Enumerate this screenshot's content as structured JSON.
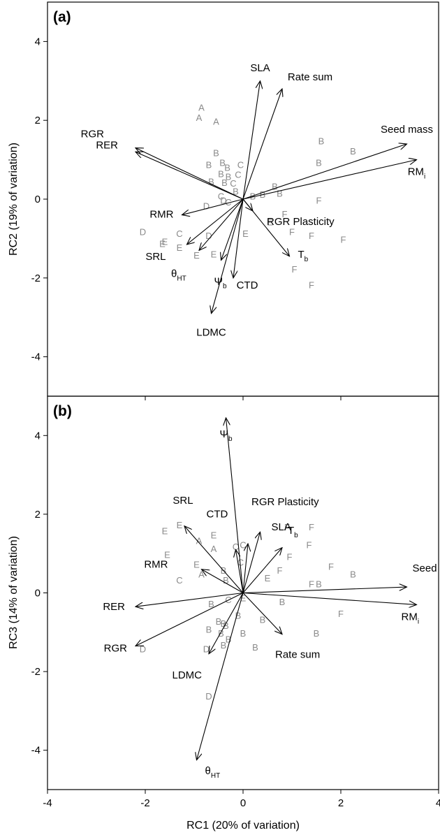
{
  "chart_data": [
    {
      "type": "scatter",
      "panel_label": "(a)",
      "xlabel": "",
      "ylabel": "RC2 (19% of variation)",
      "xlim": [
        -4,
        4
      ],
      "ylim": [
        -5,
        5
      ],
      "yticks": [
        -4,
        -2,
        0,
        2,
        4
      ],
      "xticks": [
        -4,
        -2,
        0,
        2,
        4
      ],
      "show_xticklabels": false,
      "grid": false,
      "vectors": [
        {
          "id": "sla",
          "label": "SLA",
          "end": [
            0.35,
            3.0
          ]
        },
        {
          "id": "ratesum",
          "label": "Rate sum",
          "end": [
            0.8,
            2.8
          ]
        },
        {
          "id": "rgr",
          "label": "RGR",
          "end": [
            -2.2,
            1.3
          ]
        },
        {
          "id": "rer",
          "label": "RER",
          "end": [
            -2.2,
            1.2
          ]
        },
        {
          "id": "seedmass",
          "label": "Seed mass",
          "end": [
            3.35,
            1.4
          ]
        },
        {
          "id": "rmi",
          "label": "RM",
          "sub": "i",
          "end": [
            3.55,
            1.0
          ]
        },
        {
          "id": "rmr",
          "label": "RMR",
          "end": [
            -1.25,
            -0.4
          ]
        },
        {
          "id": "rgrplast",
          "label": "RGR Plasticity",
          "end": [
            0.2,
            -0.3
          ]
        },
        {
          "id": "srl",
          "label": "SRL",
          "end": [
            -1.15,
            -1.15
          ]
        },
        {
          "id": "theta",
          "label": "θ",
          "sub": "HT",
          "end": [
            -0.9,
            -1.3
          ]
        },
        {
          "id": "psi",
          "label": "Ψ",
          "sub": "b",
          "end": [
            -0.45,
            -1.55
          ]
        },
        {
          "id": "ctd",
          "label": "CTD",
          "end": [
            -0.2,
            -2.0
          ]
        },
        {
          "id": "ldmc",
          "label": "LDMC",
          "end": [
            -0.65,
            -2.9
          ]
        },
        {
          "id": "tb",
          "label": "T",
          "sub": "b",
          "end": [
            0.95,
            -1.45
          ]
        }
      ],
      "points": [
        {
          "label": "A",
          "x": -0.85,
          "y": 2.3
        },
        {
          "label": "A",
          "x": -0.9,
          "y": 2.05
        },
        {
          "label": "A",
          "x": -0.55,
          "y": 1.95
        },
        {
          "label": "B",
          "x": -0.55,
          "y": 1.15
        },
        {
          "label": "B",
          "x": -0.7,
          "y": 0.85
        },
        {
          "label": "B",
          "x": -0.42,
          "y": 0.9
        },
        {
          "label": "B",
          "x": -0.32,
          "y": 0.78
        },
        {
          "label": "B",
          "x": -0.45,
          "y": 0.62
        },
        {
          "label": "B",
          "x": -0.3,
          "y": 0.55
        },
        {
          "label": "B",
          "x": -0.65,
          "y": 0.42
        },
        {
          "label": "B",
          "x": -0.38,
          "y": 0.4
        },
        {
          "label": "B",
          "x": -0.15,
          "y": 0.18
        },
        {
          "label": "B",
          "x": 0.2,
          "y": 0.05
        },
        {
          "label": "B",
          "x": 0.4,
          "y": 0.1
        },
        {
          "label": "B",
          "x": 0.65,
          "y": 0.3
        },
        {
          "label": "B",
          "x": 0.75,
          "y": 0.12
        },
        {
          "label": "B",
          "x": 1.6,
          "y": 1.45
        },
        {
          "label": "B",
          "x": 1.55,
          "y": 0.9
        },
        {
          "label": "B",
          "x": 2.25,
          "y": 1.2
        },
        {
          "label": "C",
          "x": -0.05,
          "y": 0.85
        },
        {
          "label": "C",
          "x": -0.1,
          "y": 0.6
        },
        {
          "label": "C",
          "x": -0.2,
          "y": 0.38
        },
        {
          "label": "C",
          "x": -0.45,
          "y": 0.05
        },
        {
          "label": "C",
          "x": -0.3,
          "y": -0.1
        },
        {
          "label": "C",
          "x": -1.3,
          "y": -0.9
        },
        {
          "label": "D",
          "x": -2.05,
          "y": -0.85
        },
        {
          "label": "D",
          "x": -0.75,
          "y": -0.2
        },
        {
          "label": "D",
          "x": -0.4,
          "y": -0.05
        },
        {
          "label": "D",
          "x": -0.7,
          "y": -0.95
        },
        {
          "label": "E",
          "x": -1.6,
          "y": -1.1
        },
        {
          "label": "E",
          "x": -1.65,
          "y": -1.15
        },
        {
          "label": "E",
          "x": -1.3,
          "y": -1.25
        },
        {
          "label": "E",
          "x": -0.95,
          "y": -1.45
        },
        {
          "label": "E",
          "x": -0.6,
          "y": -1.42
        },
        {
          "label": "E",
          "x": 0.05,
          "y": -0.9
        },
        {
          "label": "E",
          "x": 0.55,
          "y": -0.6
        },
        {
          "label": "F",
          "x": 0.85,
          "y": -0.4
        },
        {
          "label": "F",
          "x": 1.0,
          "y": -0.85
        },
        {
          "label": "F",
          "x": 1.55,
          "y": -0.05
        },
        {
          "label": "F",
          "x": 2.05,
          "y": -1.05
        },
        {
          "label": "F",
          "x": 1.4,
          "y": -0.95
        },
        {
          "label": "F",
          "x": 1.05,
          "y": -1.8
        },
        {
          "label": "F",
          "x": 1.4,
          "y": -2.2
        }
      ]
    },
    {
      "type": "scatter",
      "panel_label": "(b)",
      "xlabel": "RC1 (20% of variation)",
      "ylabel": "RC3 (14% of variation)",
      "xlim": [
        -4,
        4
      ],
      "ylim": [
        -5,
        5
      ],
      "yticks": [
        -4,
        -2,
        0,
        2,
        4
      ],
      "xticks": [
        -4,
        -2,
        0,
        2,
        4
      ],
      "show_xticklabels": true,
      "grid": false,
      "vectors": [
        {
          "id": "psi",
          "label": "Ψ",
          "sub": "b",
          "end": [
            -0.35,
            4.45
          ]
        },
        {
          "id": "rgrplast",
          "label": "RGR Plasticity",
          "end": [
            0.1,
            1.25
          ]
        },
        {
          "id": "srl",
          "label": "SRL",
          "end": [
            -1.2,
            1.7
          ]
        },
        {
          "id": "ctd",
          "label": "CTD",
          "end": [
            -0.15,
            1.1
          ]
        },
        {
          "id": "sla",
          "label": "SLA",
          "end": [
            0.35,
            1.55
          ]
        },
        {
          "id": "tb",
          "label": "T",
          "sub": "b",
          "end": [
            0.8,
            1.15
          ]
        },
        {
          "id": "rmr",
          "label": "RMR",
          "end": [
            -0.85,
            0.6
          ]
        },
        {
          "id": "seedmass",
          "label": "Seed mass",
          "end": [
            3.35,
            0.15
          ]
        },
        {
          "id": "rmi",
          "label": "RM",
          "sub": "i",
          "end": [
            3.55,
            -0.3
          ]
        },
        {
          "id": "rer",
          "label": "RER",
          "end": [
            -2.2,
            -0.35
          ]
        },
        {
          "id": "rgr",
          "label": "RGR",
          "end": [
            -2.2,
            -1.35
          ]
        },
        {
          "id": "ratesum",
          "label": "Rate sum",
          "end": [
            0.8,
            -1.05
          ]
        },
        {
          "id": "ldmc",
          "label": "LDMC",
          "end": [
            -0.7,
            -1.55
          ]
        },
        {
          "id": "theta",
          "label": "θ",
          "sub": "HT",
          "end": [
            -0.95,
            -4.25
          ]
        }
      ],
      "points": [
        {
          "label": "E",
          "x": -1.3,
          "y": 1.7
        },
        {
          "label": "E",
          "x": -1.6,
          "y": 1.55
        },
        {
          "label": "E",
          "x": -0.6,
          "y": 1.45
        },
        {
          "label": "E",
          "x": -1.55,
          "y": 0.95
        },
        {
          "label": "E",
          "x": -0.95,
          "y": 0.7
        },
        {
          "label": "E",
          "x": 0.0,
          "y": -0.15
        },
        {
          "label": "E",
          "x": 0.5,
          "y": 0.35
        },
        {
          "label": "A",
          "x": -0.9,
          "y": 1.3
        },
        {
          "label": "A",
          "x": -0.6,
          "y": 1.1
        },
        {
          "label": "A",
          "x": -0.85,
          "y": 0.45
        },
        {
          "label": "C",
          "x": -0.15,
          "y": 1.15
        },
        {
          "label": "C",
          "x": 0.0,
          "y": 1.2
        },
        {
          "label": "C",
          "x": -0.05,
          "y": 0.75
        },
        {
          "label": "C",
          "x": -1.3,
          "y": 0.3
        },
        {
          "label": "C",
          "x": -0.3,
          "y": -0.2
        },
        {
          "label": "B",
          "x": -0.4,
          "y": 0.55
        },
        {
          "label": "B",
          "x": -0.35,
          "y": 0.3
        },
        {
          "label": "B",
          "x": -0.65,
          "y": -0.3
        },
        {
          "label": "B",
          "x": -0.5,
          "y": -0.75
        },
        {
          "label": "B",
          "x": -0.4,
          "y": -0.8
        },
        {
          "label": "B",
          "x": -0.35,
          "y": -0.85
        },
        {
          "label": "B",
          "x": -0.7,
          "y": -0.95
        },
        {
          "label": "B",
          "x": -0.45,
          "y": -1.05
        },
        {
          "label": "B",
          "x": -0.3,
          "y": -1.2
        },
        {
          "label": "B",
          "x": -0.4,
          "y": -1.35
        },
        {
          "label": "B",
          "x": 0.0,
          "y": -1.05
        },
        {
          "label": "B",
          "x": -0.1,
          "y": -0.6
        },
        {
          "label": "B",
          "x": 0.25,
          "y": -1.4
        },
        {
          "label": "B",
          "x": 0.4,
          "y": -0.7
        },
        {
          "label": "B",
          "x": 0.8,
          "y": -0.25
        },
        {
          "label": "B",
          "x": 1.55,
          "y": 0.2
        },
        {
          "label": "B",
          "x": 1.5,
          "y": -1.05
        },
        {
          "label": "B",
          "x": 2.25,
          "y": 0.45
        },
        {
          "label": "D",
          "x": -2.05,
          "y": -1.45
        },
        {
          "label": "D",
          "x": -0.75,
          "y": -1.45
        },
        {
          "label": "D",
          "x": -0.7,
          "y": -2.65
        },
        {
          "label": "F",
          "x": 0.9,
          "y": 1.65
        },
        {
          "label": "F",
          "x": 1.4,
          "y": 1.65
        },
        {
          "label": "F",
          "x": 1.35,
          "y": 1.2
        },
        {
          "label": "F",
          "x": 0.95,
          "y": 0.9
        },
        {
          "label": "F",
          "x": 0.75,
          "y": 0.55
        },
        {
          "label": "F",
          "x": 1.8,
          "y": 0.65
        },
        {
          "label": "F",
          "x": 1.4,
          "y": 0.2
        },
        {
          "label": "F",
          "x": 2.0,
          "y": -0.55
        }
      ]
    }
  ]
}
